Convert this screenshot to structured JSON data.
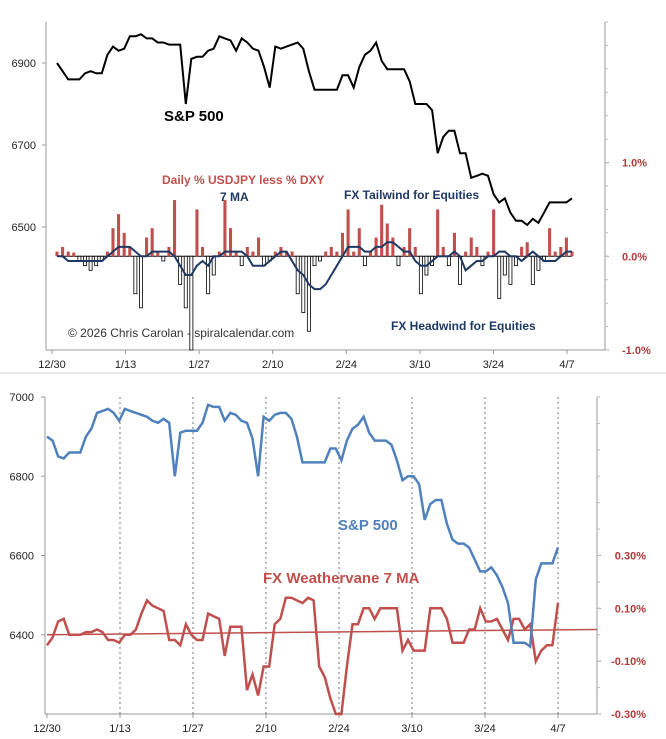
{
  "chart_data": [
    {
      "type": "line",
      "subtype": "line-with-bars-secondary-axis",
      "title": "",
      "x_tick_labels": [
        "12/30",
        "1/13",
        "1/27",
        "2/10",
        "2/24",
        "3/10",
        "3/24",
        "4/7"
      ],
      "ylabel_left": "",
      "ylabel_right": "",
      "ylim_left": [
        6200,
        7000
      ],
      "yticks_left": [
        "6500",
        "6700",
        "6900"
      ],
      "ylim_right": [
        -1.0,
        2.5
      ],
      "yticks_right": [
        "-1.0%",
        "0.0%",
        "1.0%"
      ],
      "grid": false,
      "annotations": {
        "sp500": "S&P 500",
        "bars_label": "Daily % USDJPY less % DXY",
        "ma_label": "7 MA",
        "tailwind": "FX Tailwind for Equities",
        "headwind": "FX Headwind for Equities",
        "copyright": "© 2026 Chris Carolan - spiralcalendar.com"
      },
      "colors": {
        "sp500": "#000000",
        "bars_pos": "#c0504d",
        "bars_neg": "#ffffff",
        "ma": "#1f3864",
        "bars_label": "#c0504d",
        "ma_label": "#1f3864"
      },
      "series": [
        {
          "name": "S&P 500",
          "axis": "left",
          "values": [
            6900,
            6880,
            6860,
            6860,
            6860,
            6875,
            6880,
            6875,
            6875,
            6920,
            6940,
            6930,
            6935,
            6965,
            6965,
            6970,
            6960,
            6960,
            6950,
            6950,
            6945,
            6945,
            6945,
            6800,
            6910,
            6915,
            6915,
            6930,
            6935,
            6965,
            6960,
            6955,
            6930,
            6960,
            6950,
            6935,
            6930,
            6890,
            6840,
            6940,
            6935,
            6940,
            6945,
            6950,
            6935,
            6880,
            6835,
            6835,
            6835,
            6835,
            6835,
            6870,
            6870,
            6840,
            6890,
            6920,
            6930,
            6950,
            6905,
            6885,
            6885,
            6885,
            6885,
            6855,
            6800,
            6800,
            6800,
            6785,
            6680,
            6720,
            6735,
            6735,
            6680,
            6680,
            6620,
            6625,
            6630,
            6625,
            6580,
            6560,
            6570,
            6535,
            6515,
            6515,
            6505,
            6520,
            6510,
            6535,
            6560,
            6560,
            6560,
            6560,
            6570
          ]
        },
        {
          "name": "Daily % USDJPY less % DXY",
          "axis": "right",
          "values": [
            0.05,
            0.1,
            0.05,
            0.04,
            -0.05,
            -0.1,
            -0.15,
            -0.1,
            -0.05,
            0.05,
            0.3,
            0.45,
            0.25,
            0.1,
            -0.4,
            -0.55,
            0.2,
            0.3,
            0.05,
            -0.05,
            0.1,
            0.6,
            -0.3,
            -0.55,
            -1.0,
            0.5,
            0.1,
            -0.4,
            -0.2,
            0.05,
            0.6,
            0.3,
            0.05,
            -0.1,
            0.1,
            0.05,
            0.2,
            -0.1,
            -0.05,
            0.05,
            0.1,
            0.05,
            0.05,
            -0.4,
            -0.6,
            -0.8,
            -0.1,
            -0.05,
            0.05,
            0.1,
            0.05,
            0.25,
            0.5,
            0.05,
            0.3,
            -0.1,
            0.05,
            0.2,
            0.55,
            0.35,
            0.2,
            -0.1,
            0.1,
            0.3,
            0.1,
            -0.4,
            -0.2,
            -0.1,
            0.5,
            0.1,
            -0.1,
            0.25,
            -0.3,
            0.05,
            0.2,
            0.1,
            -0.1,
            0.05,
            0.5,
            -0.45,
            -0.2,
            -0.3,
            -0.1,
            0.1,
            0.15,
            -0.3,
            -0.15,
            -0.05,
            0.3,
            0.05,
            0.1,
            0.2,
            0.05
          ]
        },
        {
          "name": "7 MA",
          "axis": "right",
          "values": [
            0.0,
            0.0,
            -0.05,
            -0.05,
            -0.05,
            -0.05,
            -0.05,
            -0.05,
            -0.05,
            0.0,
            0.05,
            0.1,
            0.1,
            0.1,
            0.05,
            0.0,
            0.0,
            0.05,
            0.05,
            0.05,
            0.05,
            0.0,
            -0.1,
            -0.2,
            -0.2,
            -0.1,
            -0.05,
            -0.1,
            0.0,
            0.0,
            0.05,
            0.05,
            0.05,
            0.05,
            0.0,
            -0.1,
            -0.1,
            -0.1,
            -0.05,
            0.0,
            0.05,
            0.05,
            -0.05,
            -0.15,
            -0.2,
            -0.3,
            -0.35,
            -0.35,
            -0.3,
            -0.2,
            -0.1,
            0.0,
            0.1,
            0.1,
            0.1,
            0.05,
            0.05,
            0.1,
            0.1,
            0.15,
            0.15,
            0.1,
            0.05,
            0.05,
            -0.05,
            -0.1,
            -0.1,
            -0.05,
            0.0,
            0.0,
            0.0,
            0.05,
            0.0,
            -0.15,
            -0.1,
            -0.05,
            -0.05,
            0.0,
            0.0,
            0.05,
            0.05,
            0.0,
            0.0,
            -0.05,
            0.0,
            0.05,
            0.0,
            -0.05,
            -0.05,
            -0.05,
            0.0,
            0.05,
            0.05
          ]
        }
      ]
    },
    {
      "type": "line",
      "title": "",
      "x_tick_labels": [
        "12/30",
        "1/13",
        "1/27",
        "2/10",
        "2/24",
        "3/10",
        "3/24",
        "4/7"
      ],
      "ylabel_left": "",
      "ylabel_right": "",
      "ylim_left": [
        6200,
        7000
      ],
      "yticks_left": [
        "6400",
        "6600",
        "6800",
        "7000"
      ],
      "ylim_right": [
        -0.3,
        0.9
      ],
      "yticks_right": [
        "-0.30%",
        "-0.10%",
        "0.10%",
        "0.30%"
      ],
      "grid": "vertical-dashed",
      "annotations": {
        "sp500": "S&P 500",
        "weathervane": "FX Weathervane 7 MA"
      },
      "colors": {
        "sp500": "#4f81bd",
        "weathervane": "#c0504d",
        "trend": "#c0504d"
      },
      "series": [
        {
          "name": "S&P 500",
          "axis": "left",
          "values": [
            6900,
            6890,
            6850,
            6845,
            6860,
            6860,
            6860,
            6900,
            6920,
            6960,
            6965,
            6970,
            6960,
            6940,
            6970,
            6965,
            6960,
            6955,
            6950,
            6940,
            6935,
            6945,
            6935,
            6800,
            6910,
            6915,
            6915,
            6915,
            6935,
            6980,
            6975,
            6975,
            6940,
            6960,
            6955,
            6940,
            6935,
            6895,
            6800,
            6950,
            6940,
            6955,
            6960,
            6960,
            6945,
            6900,
            6835,
            6835,
            6835,
            6835,
            6835,
            6870,
            6870,
            6840,
            6890,
            6920,
            6930,
            6950,
            6910,
            6890,
            6890,
            6890,
            6880,
            6840,
            6790,
            6800,
            6800,
            6780,
            6690,
            6730,
            6740,
            6740,
            6680,
            6640,
            6630,
            6630,
            6620,
            6590,
            6560,
            6560,
            6570,
            6550,
            6520,
            6480,
            6380,
            6380,
            6380,
            6370,
            6540,
            6580,
            6580,
            6580,
            6620
          ]
        },
        {
          "name": "FX Weathervane 7 MA",
          "axis": "right",
          "values": [
            -0.04,
            -0.01,
            0.05,
            0.06,
            0.0,
            0.0,
            0.0,
            0.01,
            0.01,
            0.02,
            0.01,
            -0.02,
            -0.02,
            -0.03,
            0.0,
            0.0,
            0.02,
            0.08,
            0.13,
            0.11,
            0.1,
            0.09,
            -0.02,
            -0.02,
            -0.04,
            0.04,
            0.0,
            -0.02,
            -0.02,
            0.08,
            0.07,
            0.06,
            -0.08,
            0.03,
            0.03,
            0.03,
            -0.21,
            -0.15,
            -0.23,
            -0.12,
            -0.12,
            0.04,
            0.06,
            0.14,
            0.14,
            0.13,
            0.12,
            0.14,
            0.13,
            -0.12,
            -0.16,
            -0.24,
            -0.3,
            -0.3,
            -0.12,
            0.04,
            0.04,
            0.1,
            0.1,
            0.06,
            0.1,
            0.1,
            0.1,
            0.1,
            -0.06,
            -0.02,
            -0.06,
            -0.06,
            -0.06,
            0.1,
            0.1,
            0.1,
            0.06,
            -0.03,
            -0.03,
            -0.03,
            0.02,
            0.02,
            0.1,
            0.05,
            0.05,
            0.06,
            0.02,
            -0.02,
            0.06,
            0.06,
            0.02,
            0.04,
            -0.1,
            -0.06,
            -0.04,
            -0.04,
            0.12
          ]
        },
        {
          "name": "trend",
          "axis": "right",
          "values": [
            0.0,
            0.02
          ]
        }
      ]
    }
  ]
}
